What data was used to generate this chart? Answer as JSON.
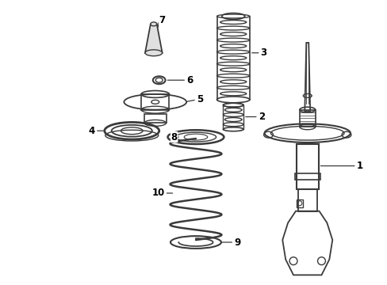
{
  "bg_color": "#ffffff",
  "line_color": "#3a3a3a",
  "text_color": "#000000",
  "fig_width": 4.89,
  "fig_height": 3.6,
  "dpi": 100
}
